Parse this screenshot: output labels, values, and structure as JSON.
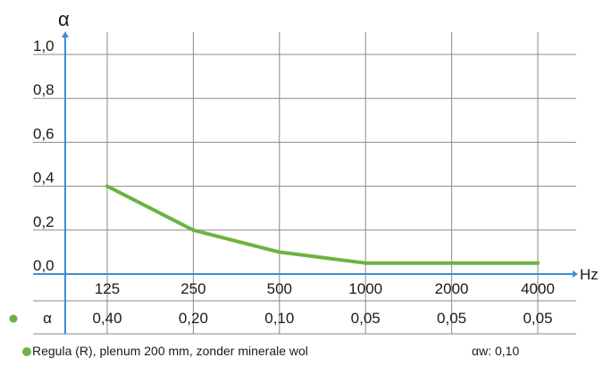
{
  "colors": {
    "series": "#6cb33f",
    "axis": "#3a8fd8",
    "grid": "#8a8a8a",
    "text": "#1a1a1a"
  },
  "chart_data": {
    "type": "line",
    "title": "",
    "xlabel": "Hz",
    "ylabel": "α",
    "categories": [
      "125",
      "250",
      "500",
      "1000",
      "2000",
      "4000"
    ],
    "y_ticks": [
      "0,0",
      "0,2",
      "0,4",
      "0,6",
      "0,8",
      "1,0"
    ],
    "ylim": [
      0,
      1.0
    ],
    "grid": true,
    "series": [
      {
        "name": "Regula (R), plenum 200 mm, zonder minerale wol",
        "values": [
          0.4,
          0.2,
          0.1,
          0.05,
          0.05,
          0.05
        ]
      }
    ],
    "table": {
      "row_label": "α",
      "values": [
        "0,40",
        "0,20",
        "0,10",
        "0,05",
        "0,05",
        "0,05"
      ]
    },
    "legend": {
      "label": "Regula (R), plenum 200 mm, zonder minerale wol",
      "aw_text": "αw: 0,10"
    }
  }
}
